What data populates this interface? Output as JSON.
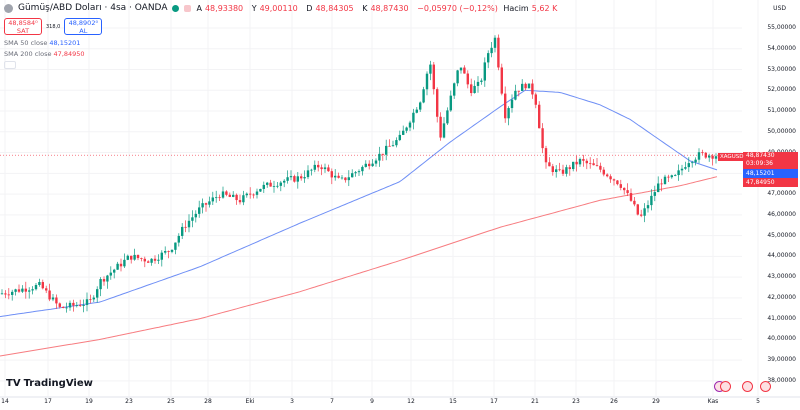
{
  "header": {
    "title": "Gümüş/ABD Doları · 4sa · OANDA",
    "ohlc": [
      {
        "k": "A",
        "v": "48,93380"
      },
      {
        "k": "Y",
        "v": "49,00110"
      },
      {
        "k": "D",
        "v": "48,84305"
      },
      {
        "k": "K",
        "v": "48,87430"
      }
    ],
    "change": "−0,05970 (−0,12%)",
    "volume_label": "Hacim",
    "volume": "5,62 K"
  },
  "trade": {
    "sell_price": "48,8584⁰",
    "sell_label": "SAT",
    "spread": "318,0",
    "buy_price": "48,8902⁰",
    "buy_label": "AL"
  },
  "indicators": [
    {
      "name": "SMA 50 close",
      "value": "48,15201"
    },
    {
      "name": "SMA 200 close",
      "value": "47,84950"
    }
  ],
  "axis": {
    "currency": "USD",
    "y_labels": [
      "55,00000",
      "54,00000",
      "53,00000",
      "52,00000",
      "51,00000",
      "50,00000",
      "49,00000",
      "48,00000",
      "47,00000",
      "46,00000",
      "45,00000",
      "44,00000",
      "43,00000",
      "42,00000",
      "41,00000",
      "40,00000",
      "39,00000",
      "38,00000"
    ],
    "x_labels": [
      "14",
      "17",
      "19",
      "23",
      "25",
      "28",
      "Eki",
      "3",
      "7",
      "9",
      "12",
      "15",
      "17",
      "21",
      "23",
      "26",
      "29",
      "Kas",
      "5"
    ]
  },
  "tags": {
    "symbol": "XAGUSD",
    "price": "48,87430",
    "countdown": "03:09:36",
    "sma50": "48,15201",
    "sma200": "47,84950"
  },
  "brand": "TradingView",
  "colors": {
    "up": "#089981",
    "down": "#f23645",
    "sma50": "#6f8ff5",
    "sma200": "#f77c80"
  },
  "chart_data": {
    "type": "line",
    "ylim": [
      38,
      55
    ],
    "price_path": [
      [
        0,
        42.2
      ],
      [
        20,
        42.4
      ],
      [
        40,
        42.6
      ],
      [
        60,
        41.5
      ],
      [
        90,
        41.8
      ],
      [
        100,
        42.8
      ],
      [
        130,
        44.0
      ],
      [
        150,
        43.8
      ],
      [
        170,
        44.3
      ],
      [
        185,
        45.5
      ],
      [
        200,
        46.3
      ],
      [
        220,
        47.0
      ],
      [
        240,
        46.7
      ],
      [
        260,
        47.3
      ],
      [
        280,
        47.6
      ],
      [
        300,
        47.8
      ],
      [
        320,
        48.4
      ],
      [
        340,
        47.6
      ],
      [
        360,
        48.2
      ],
      [
        380,
        48.9
      ],
      [
        400,
        49.7
      ],
      [
        420,
        51.5
      ],
      [
        430,
        53.4
      ],
      [
        440,
        49.7
      ],
      [
        450,
        51.5
      ],
      [
        460,
        53.3
      ],
      [
        470,
        52.0
      ],
      [
        480,
        52.3
      ],
      [
        488,
        53.8
      ],
      [
        495,
        54.5
      ],
      [
        505,
        50.8
      ],
      [
        515,
        52.0
      ],
      [
        527,
        52.3
      ],
      [
        535,
        51.7
      ],
      [
        545,
        48.4
      ],
      [
        560,
        48.0
      ],
      [
        580,
        48.6
      ],
      [
        600,
        48.2
      ],
      [
        620,
        47.5
      ],
      [
        632,
        46.6
      ],
      [
        640,
        45.8
      ],
      [
        660,
        47.6
      ],
      [
        675,
        47.8
      ],
      [
        688,
        48.6
      ],
      [
        700,
        48.9
      ],
      [
        718,
        48.87
      ]
    ],
    "sma50": [
      [
        0,
        41.1
      ],
      [
        100,
        41.8
      ],
      [
        200,
        43.5
      ],
      [
        300,
        45.6
      ],
      [
        400,
        47.6
      ],
      [
        450,
        49.5
      ],
      [
        500,
        51.2
      ],
      [
        525,
        52.0
      ],
      [
        560,
        51.9
      ],
      [
        600,
        51.3
      ],
      [
        630,
        50.6
      ],
      [
        660,
        49.6
      ],
      [
        690,
        48.6
      ],
      [
        718,
        48.15
      ]
    ],
    "sma200": [
      [
        0,
        39.2
      ],
      [
        100,
        40.0
      ],
      [
        200,
        41.0
      ],
      [
        300,
        42.3
      ],
      [
        400,
        43.8
      ],
      [
        500,
        45.4
      ],
      [
        600,
        46.7
      ],
      [
        680,
        47.4
      ],
      [
        718,
        47.85
      ]
    ]
  }
}
